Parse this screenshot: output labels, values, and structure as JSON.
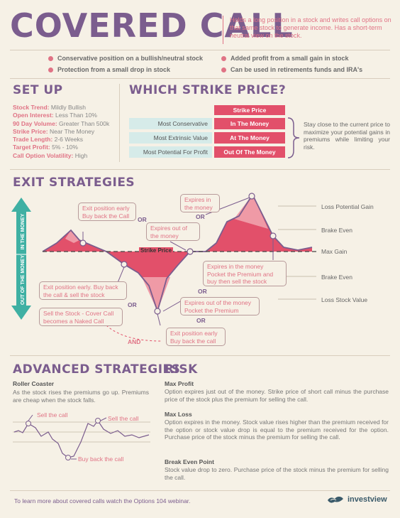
{
  "header": {
    "title": "COVERED CALL",
    "intro": "Holds a long position in a stock and writes call options on that same stock to generate income. Has a short-term neutral view on the stock."
  },
  "bullets": [
    "Conservative position on a bullish/neutral stock",
    "Added profit from a small gain in stock",
    "Protection from a small drop in stock",
    "Can be used in retirements funds and IRA's"
  ],
  "setup": {
    "heading": "SET UP",
    "rows": [
      {
        "label": "Stock Trend:",
        "value": "Mildly Bullish"
      },
      {
        "label": "Open Interest:",
        "value": "Less Than 10%"
      },
      {
        "label": "90 Day Volume:",
        "value": "Greater Than 500k"
      },
      {
        "label": "Strike Price:",
        "value": "Near The Money"
      },
      {
        "label": "Trade Length:",
        "value": "2-6 Weeks"
      },
      {
        "label": "Target Profit:",
        "value": "5% - 10%"
      },
      {
        "label": "Call Option Volatility:",
        "value": "High"
      }
    ]
  },
  "strike": {
    "heading": "WHICH STRIKE PRICE?",
    "col_header": "Strike Price",
    "rows": [
      {
        "label": "Most Conservative",
        "value": "In The Money"
      },
      {
        "label": "Most Extrinsic Value",
        "value": "At The Money"
      },
      {
        "label": "Most Potential For Profit",
        "value": "Out Of The Money"
      }
    ],
    "note": "Stay close to the current price to maximize your potential gains in premiums while limiting your risk."
  },
  "exit": {
    "heading": "EXIT STRATEGIES",
    "axis_up": "IN THE MONEY",
    "axis_down": "OUT OF THE MONEY",
    "strike_label": "Strike Price",
    "levels": [
      "Loss Potential Gain",
      "Brake Even",
      "Max Gain",
      "Brake Even",
      "Loss Stock Value"
    ],
    "callouts": {
      "c1": "Exit position early Buy back the Call",
      "c2": "Expires out of the money",
      "c3": "Expires in the money",
      "c4": "Expires in the money Pocket the Premium and buy then sell the stock",
      "c5": "Exit position early. Buy back the call & sell the stock",
      "c6": "Sell the Stock - Cover Call becomes a Naked Call",
      "c7": "Expires out of the money Pocket the Premium",
      "c8": "Exit position early Buy back the call"
    },
    "or": "OR",
    "and": "AND"
  },
  "advanced": {
    "heading": "ADVANCED STRATEGIES",
    "sub": "Roller Coaster",
    "text": "As the stock rises the premiums go up. Premiums are cheap when the stock falls.",
    "labels": [
      "Sell the call",
      "Sell the call",
      "Buy back the call"
    ]
  },
  "risk": {
    "heading": "RISK",
    "items": [
      {
        "title": "Max Profit",
        "text": "Option expires just out of the money. Strike price of short call minus the purchase price of the stock plus the premium for selling the call."
      },
      {
        "title": "Max Loss",
        "text": "Option expires in the money. Stock value rises higher than the premium received for the option or stock value drop is equal to the premium received for the option. Purchase price of the stock minus the premium for selling the call."
      },
      {
        "title": "Break Even Point",
        "text": "Stock value drop to zero. Purchase price of the stock minus the premium for selling the call."
      }
    ]
  },
  "footer": {
    "text": "To learn more about covered calls watch the Options 104 webinar.",
    "brand": "investview"
  },
  "colors": {
    "purple": "#7b5d8e",
    "pink": "#e07385",
    "red": "#e2506a",
    "teal": "#3fb0a3"
  }
}
